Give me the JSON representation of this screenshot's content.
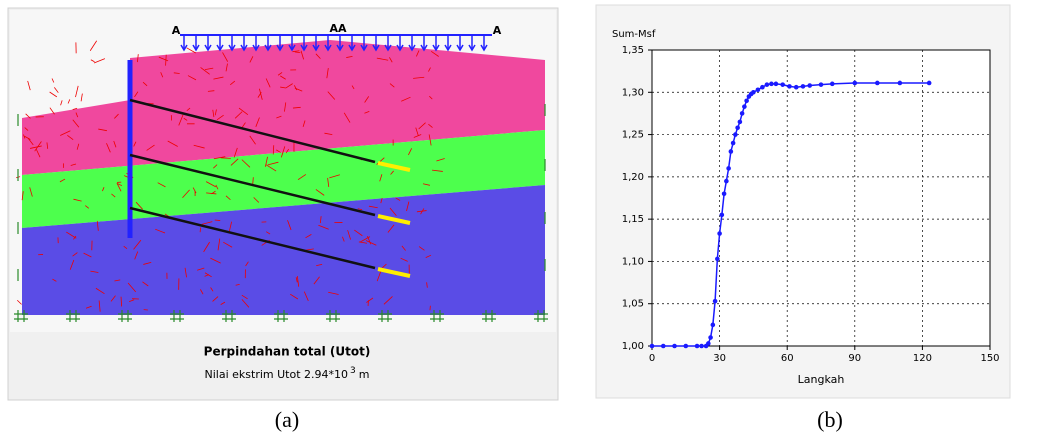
{
  "panel_a": {
    "load_labels": [
      "A",
      "AA",
      "A"
    ],
    "title": "Perpindahan total (Utot)",
    "subtitle": {
      "text": "Nilai ekstrim Utot 2.94*10",
      "superscript": "3",
      "unit": "m"
    },
    "caption": "(a)"
  },
  "chart_data": {
    "type": "line",
    "ylabel": "Sum-Msf",
    "xlabel": "Langkah",
    "caption": "(b)",
    "xlim": [
      0,
      150
    ],
    "xticks": [
      0,
      30,
      60,
      90,
      120,
      150
    ],
    "ylim": [
      1.0,
      1.35
    ],
    "yticks": [
      {
        "value": 1.0,
        "label": "1,00"
      },
      {
        "value": 1.05,
        "label": "1,05"
      },
      {
        "value": 1.1,
        "label": "1,10"
      },
      {
        "value": 1.15,
        "label": "1,15"
      },
      {
        "value": 1.2,
        "label": "1,20"
      },
      {
        "value": 1.25,
        "label": "1,25"
      },
      {
        "value": 1.3,
        "label": "1,30"
      },
      {
        "value": 1.35,
        "label": "1,35"
      }
    ],
    "grid": true,
    "series": [
      {
        "color": "#1a1aff",
        "x": [
          0,
          5,
          10,
          15,
          20,
          22,
          24,
          25,
          26,
          27,
          28,
          29,
          30,
          31,
          32,
          33,
          34,
          35,
          36,
          37,
          38,
          39,
          40,
          41,
          42,
          43,
          44,
          45,
          47,
          49,
          51,
          53,
          55,
          58,
          61,
          64,
          67,
          70,
          75,
          80,
          90,
          100,
          110,
          123
        ],
        "values": [
          1.0,
          1.0,
          1.0,
          1.0,
          1.0,
          1.0,
          1.0,
          1.003,
          1.01,
          1.025,
          1.053,
          1.103,
          1.133,
          1.155,
          1.18,
          1.195,
          1.21,
          1.23,
          1.24,
          1.25,
          1.258,
          1.265,
          1.275,
          1.283,
          1.29,
          1.295,
          1.298,
          1.3,
          1.303,
          1.306,
          1.309,
          1.31,
          1.31,
          1.309,
          1.307,
          1.306,
          1.307,
          1.308,
          1.309,
          1.31,
          1.311,
          1.311,
          1.311,
          1.311
        ]
      }
    ]
  }
}
